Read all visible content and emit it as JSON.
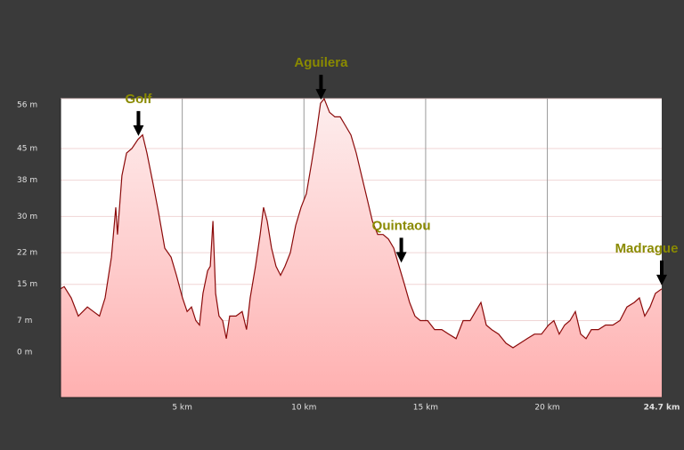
{
  "chart_data": {
    "type": "area",
    "x": [
      0,
      0.15,
      0.44,
      0.73,
      1.1,
      1.35,
      1.6,
      1.83,
      2.09,
      2.27,
      2.34,
      2.52,
      2.71,
      2.93,
      3.18,
      3.37,
      3.55,
      3.81,
      4.02,
      4.28,
      4.54,
      4.76,
      5.01,
      5.2,
      5.38,
      5.56,
      5.71,
      5.85,
      6.04,
      6.15,
      6.26,
      6.37,
      6.51,
      6.66,
      6.81,
      6.95,
      7.21,
      7.46,
      7.64,
      7.79,
      8.01,
      8.2,
      8.34,
      8.49,
      8.67,
      8.85,
      9.04,
      9.22,
      9.44,
      9.66,
      9.88,
      10.1,
      10.32,
      10.5,
      10.68,
      10.83,
      11.05,
      11.27,
      11.49,
      11.71,
      11.93,
      12.15,
      12.37,
      12.59,
      12.81,
      13.03,
      13.25,
      13.47,
      13.69,
      13.91,
      14.13,
      14.34,
      14.56,
      14.78,
      15.08,
      15.37,
      15.66,
      15.95,
      16.25,
      16.54,
      16.83,
      17.05,
      17.27,
      17.49,
      17.71,
      18.0,
      18.3,
      18.59,
      18.88,
      19.17,
      19.47,
      19.76,
      20.05,
      20.27,
      20.49,
      20.71,
      20.93,
      21.15,
      21.37,
      21.59,
      21.81,
      22.1,
      22.39,
      22.69,
      22.98,
      23.27,
      23.57,
      23.78,
      24.0,
      24.22,
      24.44,
      24.7
    ],
    "values": [
      14,
      14.5,
      12,
      8,
      10,
      9,
      8,
      12,
      21,
      32,
      26,
      39,
      44,
      45,
      47,
      48,
      44,
      37,
      31,
      23,
      21,
      17,
      12,
      9,
      10,
      7,
      6,
      13,
      18,
      19,
      29,
      13,
      8,
      7,
      3,
      8,
      8,
      9,
      5,
      12,
      19,
      26,
      32,
      29,
      23,
      19,
      17,
      19,
      22,
      28,
      32,
      35,
      42,
      48,
      55,
      56,
      53,
      52,
      52,
      50,
      48,
      44,
      39,
      34,
      29,
      26,
      26,
      25,
      23,
      19,
      15,
      11,
      8,
      7,
      7,
      5,
      5,
      4,
      3,
      7,
      7,
      9,
      11,
      6,
      5,
      4,
      2,
      1,
      2,
      3,
      4,
      4,
      6,
      7,
      4,
      6,
      7,
      9,
      4,
      3,
      5,
      5,
      6,
      6,
      7,
      10,
      11,
      12,
      8,
      10,
      13,
      14
    ],
    "color": "#8b0a0a",
    "xlim": [
      0,
      24.7
    ],
    "ylim": [
      -10,
      56
    ],
    "xticks": [
      {
        "value": 5,
        "label": "5 km"
      },
      {
        "value": 10,
        "label": "10 km"
      },
      {
        "value": 15,
        "label": "15 km"
      },
      {
        "value": 20,
        "label": "20 km"
      },
      {
        "value": 24.7,
        "label": "24.7 km"
      }
    ],
    "yticks": [
      {
        "value": 56,
        "label": "56 m"
      },
      {
        "value": 45,
        "label": "45 m"
      },
      {
        "value": 38,
        "label": "38 m"
      },
      {
        "value": 30,
        "label": "30 m"
      },
      {
        "value": 22,
        "label": "22 m"
      },
      {
        "value": 15,
        "label": "15 m"
      },
      {
        "value": 7,
        "label": "7 m"
      },
      {
        "value": 0,
        "label": "0 m"
      }
    ],
    "grid": true,
    "annotations": [
      {
        "text": "Golf",
        "x": 3.2
      },
      {
        "text": "Aguilera",
        "x": 10.7
      },
      {
        "text": "Quintaou",
        "x": 14.0
      },
      {
        "text": "Madrague",
        "x": 24.7
      }
    ]
  }
}
